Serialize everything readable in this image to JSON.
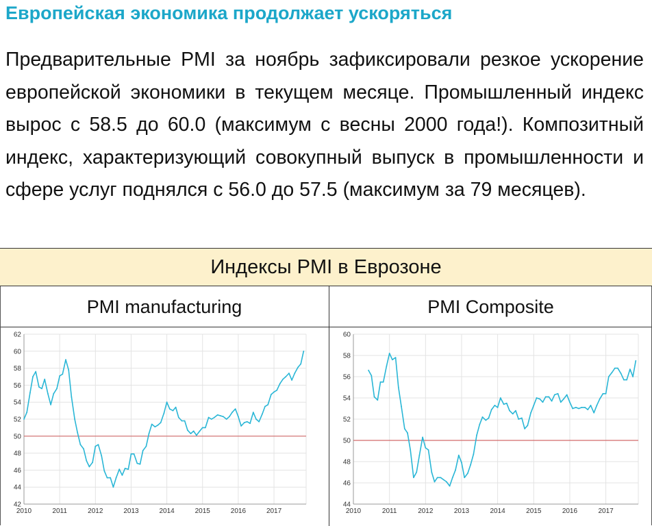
{
  "headline": "Европейская экономика продолжает ускоряться",
  "body_text": "Предварительные PMI за ноябрь зафиксировали резкое ускорение европейской экономики в текущем месяце. Промышленный индекс вырос с 58.5 до 60.0 (максимум с весны 2000 года!). Композитный индекс, характеризующий совокупный выпуск в промышленности и сфере услуг поднялся с 56.0 до 57.5 (максимум за 79 месяцев).",
  "panel_title": "Индексы PMI в Еврозоне",
  "colors": {
    "headline": "#1ca7c9",
    "series": "#29b6d6",
    "threshold": "#d26a6a",
    "panel_bg": "#fdf1cc"
  },
  "chart_data": [
    {
      "type": "line",
      "title": "PMI manufacturing",
      "xlim": [
        2010.0,
        2017.9
      ],
      "ylim": [
        42,
        62
      ],
      "x_ticks": [
        "2010",
        "2011",
        "2012",
        "2013",
        "2014",
        "2015",
        "2016",
        "2017"
      ],
      "y_ticks": [
        42,
        44,
        46,
        48,
        50,
        52,
        54,
        56,
        58,
        60,
        62
      ],
      "reference_line": 50,
      "grid": true,
      "series": [
        {
          "x": [
            2010.0,
            2010.08,
            2010.17,
            2010.25,
            2010.33,
            2010.42,
            2010.5,
            2010.58,
            2010.67,
            2010.75,
            2010.83,
            2010.92,
            2011.0,
            2011.08,
            2011.17,
            2011.25,
            2011.33,
            2011.42,
            2011.5,
            2011.58,
            2011.67,
            2011.75,
            2011.83,
            2011.92,
            2012.0,
            2012.08,
            2012.17,
            2012.25,
            2012.33,
            2012.42,
            2012.5,
            2012.58,
            2012.67,
            2012.75,
            2012.83,
            2012.92,
            2013.0,
            2013.08,
            2013.17,
            2013.25,
            2013.33,
            2013.42,
            2013.5,
            2013.58,
            2013.67,
            2013.75,
            2013.83,
            2013.92,
            2014.0,
            2014.08,
            2014.17,
            2014.25,
            2014.33,
            2014.42,
            2014.5,
            2014.58,
            2014.67,
            2014.75,
            2014.83,
            2014.92,
            2015.0,
            2015.08,
            2015.17,
            2015.25,
            2015.33,
            2015.42,
            2015.5,
            2015.58,
            2015.67,
            2015.75,
            2015.83,
            2015.92,
            2016.0,
            2016.08,
            2016.17,
            2016.25,
            2016.33,
            2016.42,
            2016.5,
            2016.58,
            2016.67,
            2016.75,
            2016.83,
            2016.92,
            2017.0,
            2017.08,
            2017.17,
            2017.25,
            2017.33,
            2017.42,
            2017.5,
            2017.58,
            2017.67,
            2017.75,
            2017.83
          ],
          "y": [
            52.0,
            52.8,
            55.1,
            57.0,
            57.6,
            55.8,
            55.6,
            56.7,
            55.0,
            53.7,
            55.0,
            55.6,
            57.1,
            57.3,
            59.0,
            57.8,
            54.6,
            52.0,
            50.4,
            49.0,
            48.5,
            47.1,
            46.4,
            46.9,
            48.8,
            49.0,
            47.7,
            45.9,
            45.1,
            45.1,
            44.0,
            45.1,
            46.1,
            45.4,
            46.2,
            46.1,
            47.9,
            47.9,
            46.8,
            46.7,
            48.3,
            48.8,
            50.3,
            51.4,
            51.1,
            51.3,
            51.6,
            52.7,
            54.0,
            53.2,
            53.0,
            53.4,
            52.2,
            51.8,
            51.8,
            50.7,
            50.3,
            50.6,
            50.1,
            50.6,
            51.0,
            51.0,
            52.2,
            52.0,
            52.2,
            52.5,
            52.4,
            52.3,
            52.0,
            52.3,
            52.8,
            53.2,
            52.3,
            51.2,
            51.6,
            51.7,
            51.5,
            52.8,
            52.0,
            51.7,
            52.6,
            53.5,
            53.7,
            54.9,
            55.2,
            55.4,
            56.2,
            56.7,
            57.0,
            57.4,
            56.6,
            57.4,
            58.1,
            58.5,
            60.0
          ]
        }
      ]
    },
    {
      "type": "line",
      "title": "PMI Composite",
      "xlim": [
        2010.0,
        2017.9
      ],
      "ylim": [
        44,
        60
      ],
      "x_ticks": [
        "2010",
        "2011",
        "2012",
        "2013",
        "2014",
        "2015",
        "2016",
        "2017"
      ],
      "y_ticks": [
        44,
        46,
        48,
        50,
        52,
        54,
        56,
        58,
        60
      ],
      "reference_line": 50,
      "grid": true,
      "series": [
        {
          "x": [
            2010.42,
            2010.5,
            2010.58,
            2010.67,
            2010.75,
            2010.83,
            2010.92,
            2011.0,
            2011.08,
            2011.17,
            2011.25,
            2011.33,
            2011.42,
            2011.5,
            2011.58,
            2011.67,
            2011.75,
            2011.83,
            2011.92,
            2012.0,
            2012.08,
            2012.17,
            2012.25,
            2012.33,
            2012.42,
            2012.5,
            2012.58,
            2012.67,
            2012.75,
            2012.83,
            2012.92,
            2013.0,
            2013.08,
            2013.17,
            2013.25,
            2013.33,
            2013.42,
            2013.5,
            2013.58,
            2013.67,
            2013.75,
            2013.83,
            2013.92,
            2014.0,
            2014.08,
            2014.17,
            2014.25,
            2014.33,
            2014.42,
            2014.5,
            2014.58,
            2014.67,
            2014.75,
            2014.83,
            2014.92,
            2015.0,
            2015.08,
            2015.17,
            2015.25,
            2015.33,
            2015.42,
            2015.5,
            2015.58,
            2015.67,
            2015.75,
            2015.83,
            2015.92,
            2016.0,
            2016.08,
            2016.17,
            2016.25,
            2016.33,
            2016.42,
            2016.5,
            2016.58,
            2016.67,
            2016.75,
            2016.83,
            2016.92,
            2017.0,
            2017.08,
            2017.17,
            2017.25,
            2017.33,
            2017.42,
            2017.5,
            2017.58,
            2017.67,
            2017.75,
            2017.83
          ],
          "y": [
            56.6,
            56.1,
            54.1,
            53.8,
            55.5,
            55.5,
            57.0,
            58.2,
            57.6,
            57.8,
            55.0,
            53.2,
            51.1,
            50.7,
            49.1,
            46.5,
            47.0,
            48.6,
            50.3,
            49.3,
            49.1,
            47.0,
            46.1,
            46.5,
            46.5,
            46.3,
            46.1,
            45.7,
            46.5,
            47.2,
            48.6,
            47.9,
            46.5,
            46.9,
            47.7,
            48.7,
            50.5,
            51.5,
            52.2,
            51.9,
            52.1,
            52.9,
            53.3,
            53.1,
            54.0,
            53.4,
            53.5,
            52.8,
            52.5,
            52.8,
            52.0,
            52.1,
            51.1,
            51.4,
            52.6,
            53.3,
            54.0,
            53.9,
            53.6,
            54.1,
            54.1,
            53.7,
            54.3,
            54.4,
            53.6,
            53.9,
            54.3,
            53.6,
            53.0,
            53.1,
            53.0,
            53.1,
            53.1,
            52.9,
            53.3,
            52.6,
            53.3,
            53.9,
            54.4,
            54.4,
            56.0,
            56.4,
            56.8,
            56.8,
            56.3,
            55.7,
            55.7,
            56.7,
            56.0,
            57.5
          ]
        }
      ]
    }
  ]
}
